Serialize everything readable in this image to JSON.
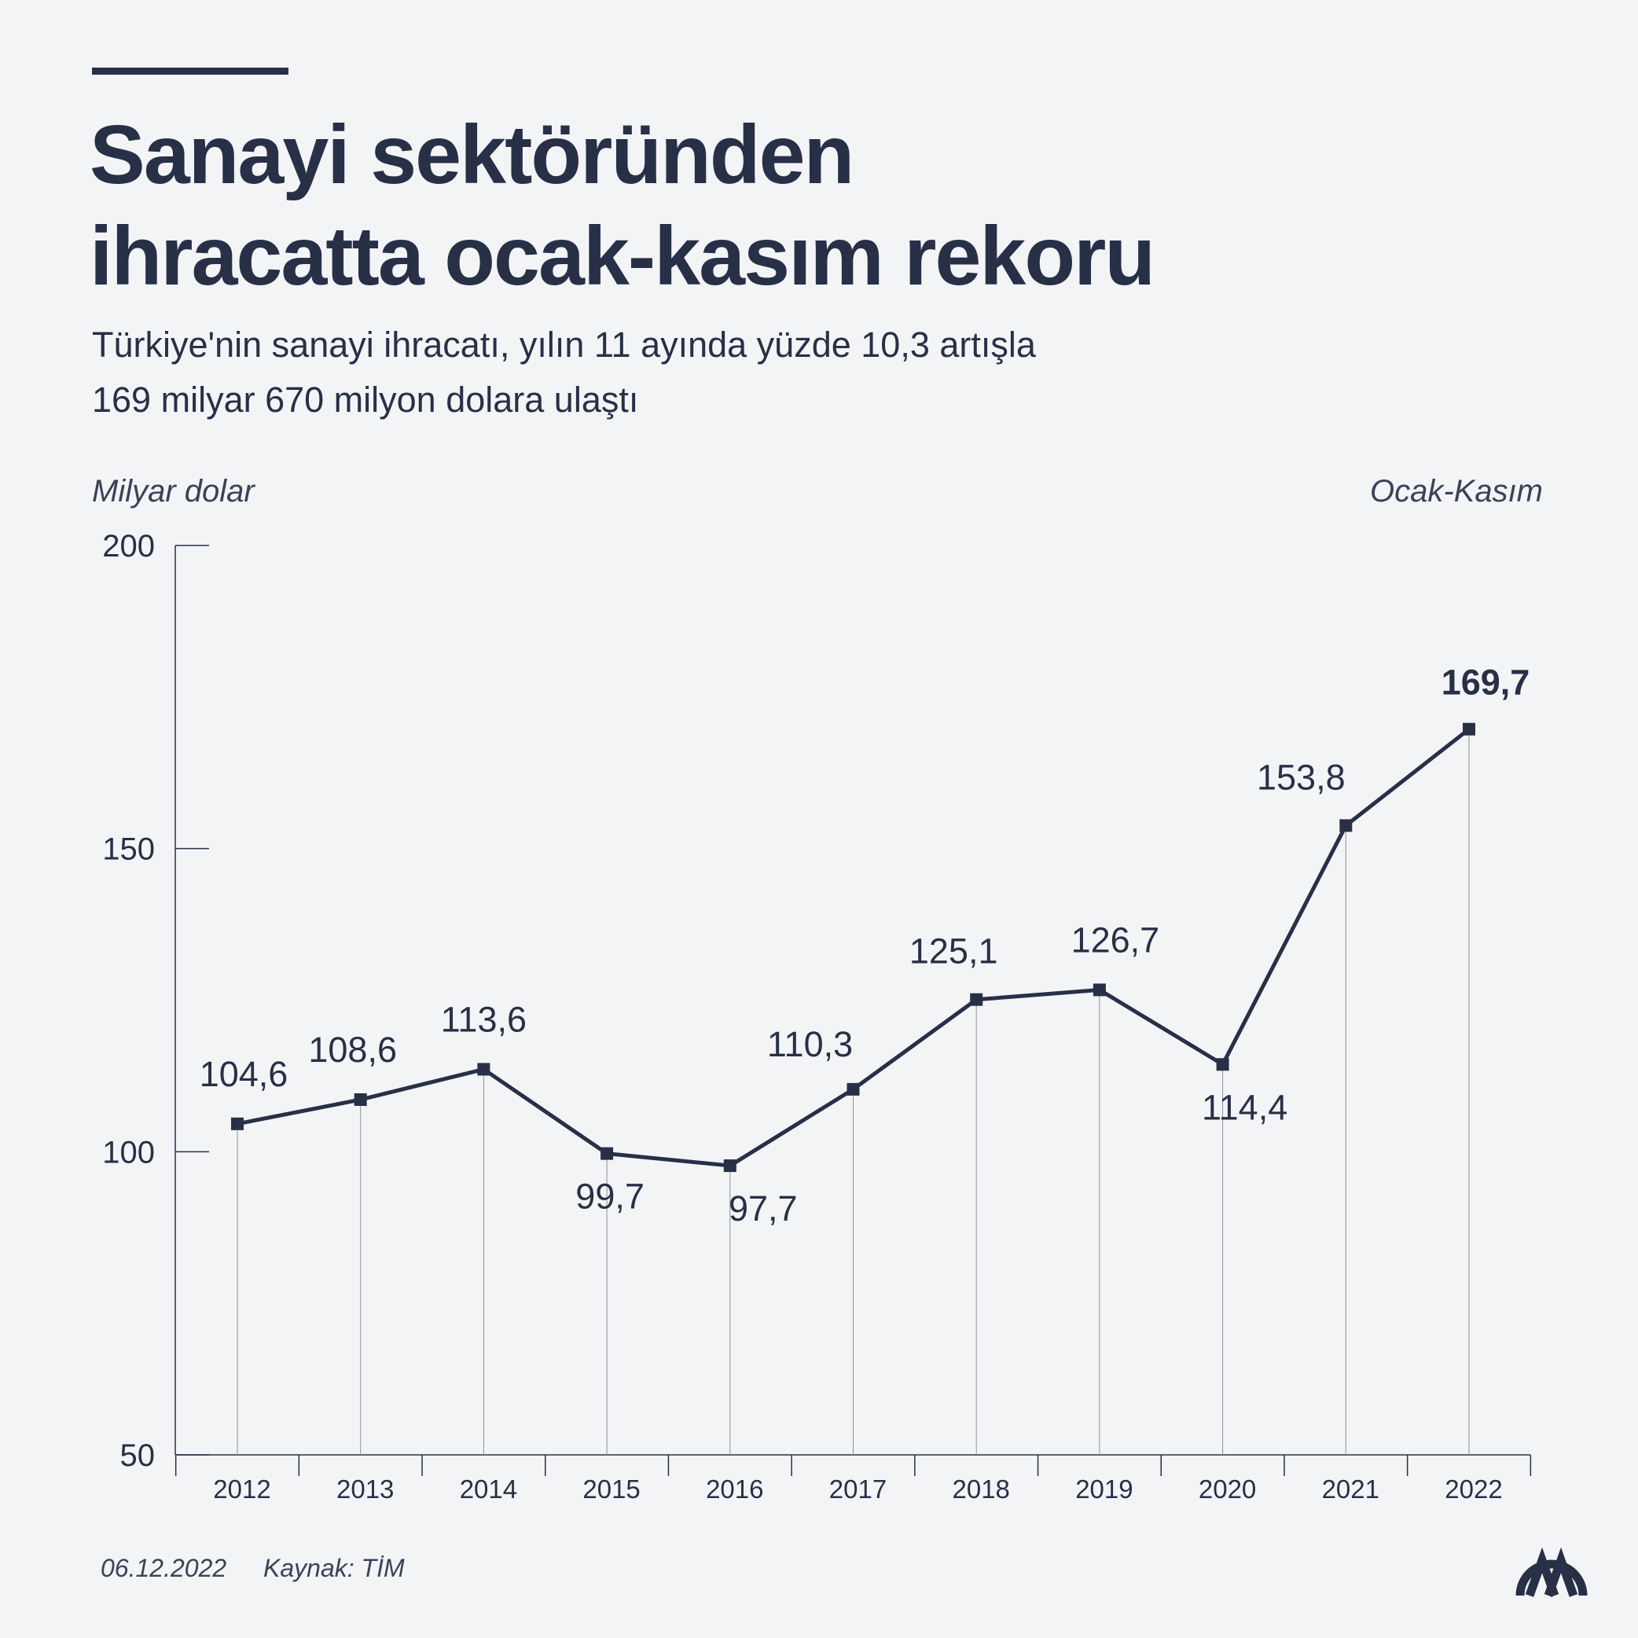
{
  "header": {
    "title_lines": [
      "Sanayi sektöründen",
      "ihracatta ocak-kasım rekoru"
    ],
    "subtitle_lines": [
      "Türkiye'nin sanayi ihracatı, yılın 11 ayında yüzde 10,3 artışla",
      "169 milyar 670 milyon dolara ulaştı"
    ]
  },
  "chart_data": {
    "type": "line",
    "y_label": "Milyar dolar",
    "period_label": "Ocak-Kasım",
    "categories": [
      "2012",
      "2013",
      "2014",
      "2015",
      "2016",
      "2017",
      "2018",
      "2019",
      "2020",
      "2021",
      "2022"
    ],
    "values": [
      104.6,
      108.6,
      113.6,
      99.7,
      97.7,
      110.3,
      125.1,
      126.7,
      114.4,
      153.8,
      169.7
    ],
    "value_labels": [
      "104,6",
      "108,6",
      "113,6",
      "99,7",
      "97,7",
      "110,3",
      "125,1",
      "126,7",
      "114,4",
      "153,8",
      "169,7"
    ],
    "color": "#283047",
    "ylim": [
      50,
      200
    ],
    "yticks": [
      50,
      100,
      150,
      200
    ]
  },
  "footer": {
    "date": "06.12.2022",
    "source": "Kaynak: TİM"
  }
}
